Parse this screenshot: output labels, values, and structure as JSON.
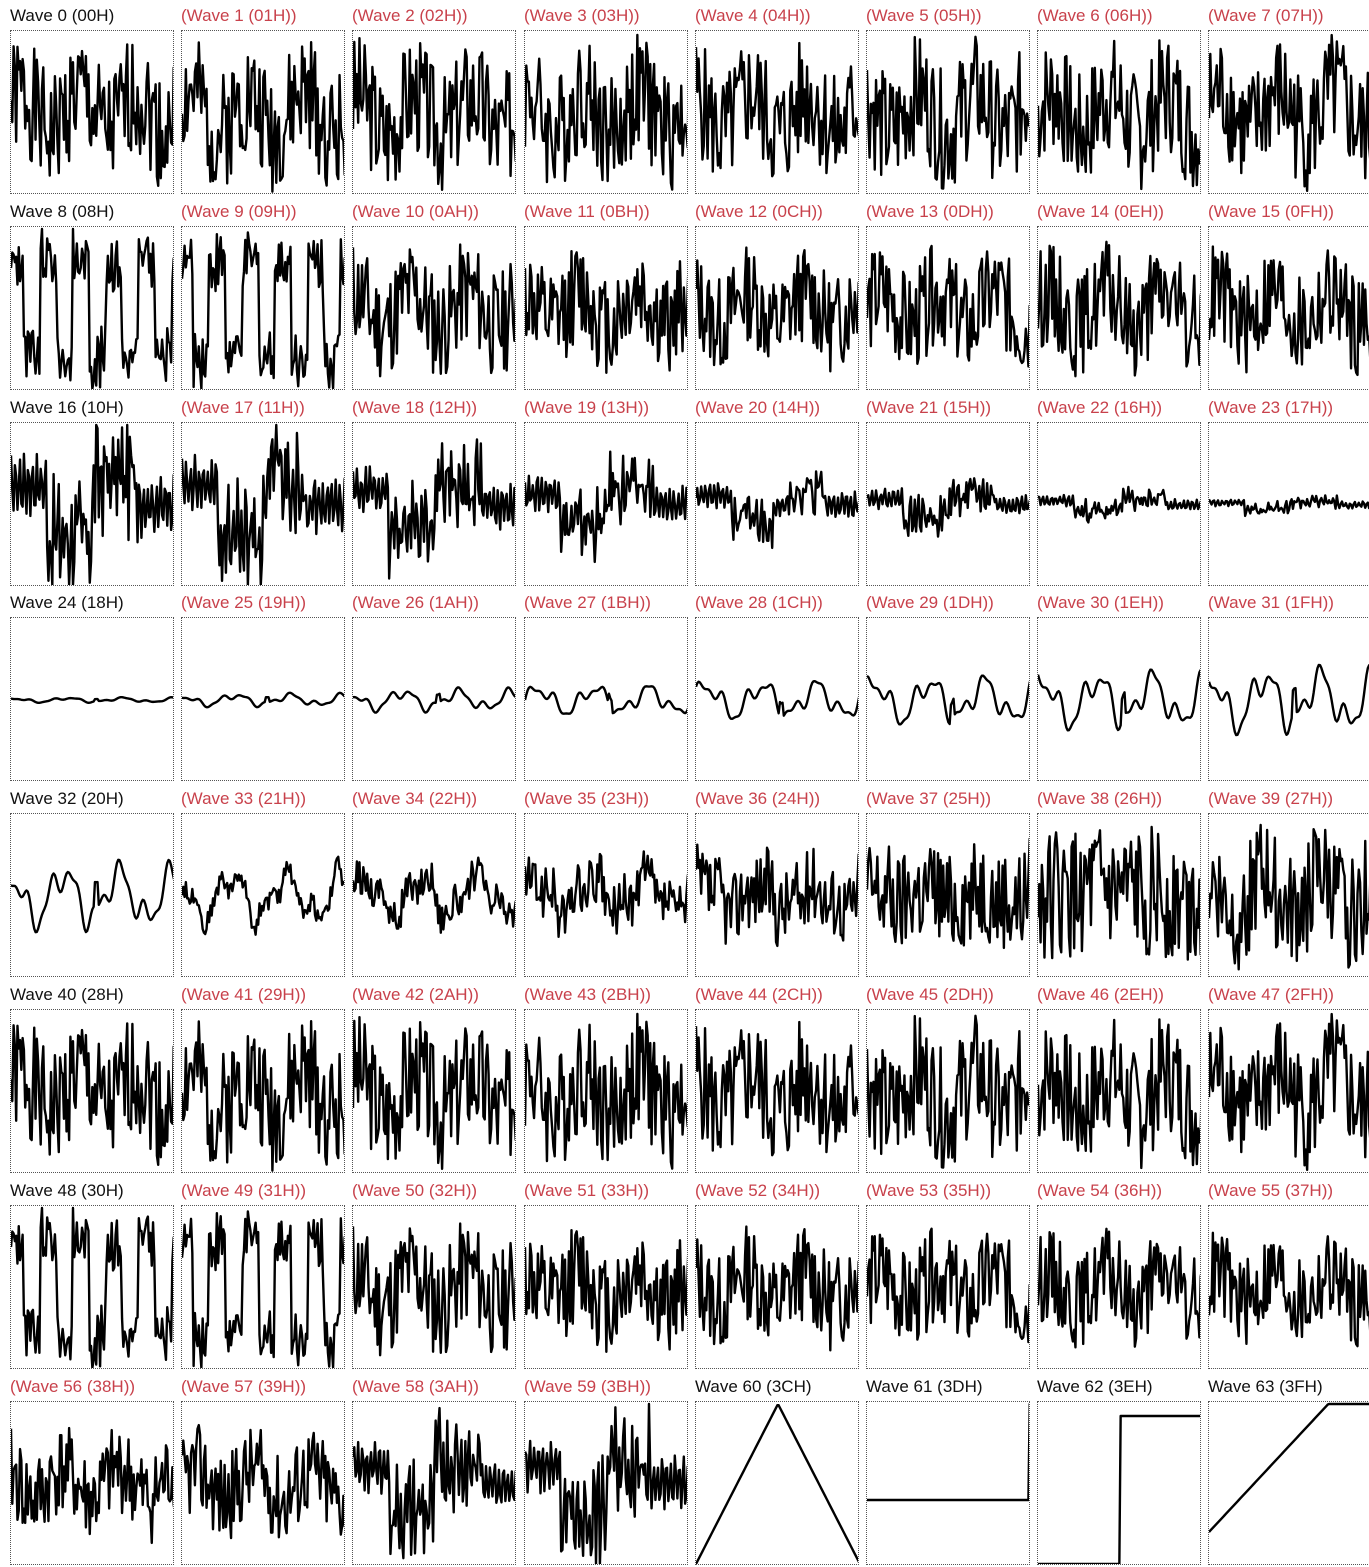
{
  "colors": {
    "normal_title": "#111111",
    "alt_title": "#c8414b",
    "trace": "#000000"
  },
  "chart_data": {
    "type": "line",
    "layout": "grid-8x8",
    "title": "",
    "ylim": [
      -1,
      1
    ],
    "panels": [
      {
        "title": "Wave 0 (00H)",
        "style": "normal",
        "shape": "noise",
        "amp": 1.0,
        "seed": 1
      },
      {
        "title": "(Wave 1 (01H))",
        "style": "alt",
        "shape": "noise",
        "amp": 1.0,
        "seed": 2
      },
      {
        "title": "(Wave 2 (02H))",
        "style": "alt",
        "shape": "noise",
        "amp": 1.0,
        "seed": 3
      },
      {
        "title": "(Wave 3 (03H))",
        "style": "alt",
        "shape": "noise",
        "amp": 1.0,
        "seed": 4
      },
      {
        "title": "(Wave 4 (04H))",
        "style": "alt",
        "shape": "noise",
        "amp": 1.0,
        "seed": 5
      },
      {
        "title": "(Wave 5 (05H))",
        "style": "alt",
        "shape": "noise",
        "amp": 1.0,
        "seed": 6
      },
      {
        "title": "(Wave 6 (06H))",
        "style": "alt",
        "shape": "noise",
        "amp": 1.0,
        "seed": 7
      },
      {
        "title": "(Wave 7 (07H))",
        "style": "alt",
        "shape": "noise",
        "amp": 1.0,
        "seed": 8
      },
      {
        "title": "Wave 8 (08H)",
        "style": "normal",
        "shape": "square-noise",
        "amp": 1.0,
        "seed": 9
      },
      {
        "title": "(Wave 9 (09H))",
        "style": "alt",
        "shape": "square-noise",
        "amp": 0.95,
        "seed": 10
      },
      {
        "title": "(Wave 10 (0AH))",
        "style": "alt",
        "shape": "noise",
        "amp": 0.9,
        "seed": 11
      },
      {
        "title": "(Wave 11 (0BH))",
        "style": "alt",
        "shape": "noise",
        "amp": 0.85,
        "seed": 12
      },
      {
        "title": "(Wave 12 (0CH))",
        "style": "alt",
        "shape": "noise",
        "amp": 0.8,
        "seed": 13
      },
      {
        "title": "(Wave 13 (0DH))",
        "style": "alt",
        "shape": "noise",
        "amp": 0.85,
        "seed": 14
      },
      {
        "title": "(Wave 14 (0EH))",
        "style": "alt",
        "shape": "noise",
        "amp": 0.85,
        "seed": 15
      },
      {
        "title": "(Wave 15 (0FH))",
        "style": "alt",
        "shape": "noise",
        "amp": 0.85,
        "seed": 16
      },
      {
        "title": "Wave 16 (10H)",
        "style": "normal",
        "shape": "burst",
        "amp": 1.0,
        "seed": 17
      },
      {
        "title": "(Wave 17 (11H))",
        "style": "alt",
        "shape": "burst",
        "amp": 0.95,
        "seed": 18
      },
      {
        "title": "(Wave 18 (12H))",
        "style": "alt",
        "shape": "burst",
        "amp": 0.75,
        "seed": 19
      },
      {
        "title": "(Wave 19 (13H))",
        "style": "alt",
        "shape": "burst",
        "amp": 0.6,
        "seed": 20
      },
      {
        "title": "(Wave 20 (14H))",
        "style": "alt",
        "shape": "burst",
        "amp": 0.45,
        "seed": 21
      },
      {
        "title": "(Wave 21 (15H))",
        "style": "alt",
        "shape": "burst",
        "amp": 0.33,
        "seed": 22
      },
      {
        "title": "(Wave 22 (16H))",
        "style": "alt",
        "shape": "burst",
        "amp": 0.2,
        "seed": 23
      },
      {
        "title": "(Wave 23 (17H))",
        "style": "alt",
        "shape": "burst",
        "amp": 0.12,
        "seed": 24
      },
      {
        "title": "Wave 24 (18H)",
        "style": "normal",
        "shape": "smooth",
        "amp": 0.04,
        "seed": 25
      },
      {
        "title": "(Wave 25 (19H))",
        "style": "alt",
        "shape": "smooth",
        "amp": 0.1,
        "seed": 26
      },
      {
        "title": "(Wave 26 (1AH))",
        "style": "alt",
        "shape": "smooth",
        "amp": 0.17,
        "seed": 27
      },
      {
        "title": "(Wave 27 (1BH))",
        "style": "alt",
        "shape": "smooth",
        "amp": 0.24,
        "seed": 28
      },
      {
        "title": "(Wave 28 (1CH))",
        "style": "alt",
        "shape": "smooth",
        "amp": 0.31,
        "seed": 29
      },
      {
        "title": "(Wave 29 (1DH))",
        "style": "alt",
        "shape": "smooth",
        "amp": 0.38,
        "seed": 30
      },
      {
        "title": "(Wave 30 (1EH))",
        "style": "alt",
        "shape": "smooth",
        "amp": 0.45,
        "seed": 31
      },
      {
        "title": "(Wave 31 (1FH))",
        "style": "alt",
        "shape": "smooth",
        "amp": 0.5,
        "seed": 32
      },
      {
        "title": "Wave 32 (20H)",
        "style": "normal",
        "shape": "smooth",
        "amp": 0.5,
        "seed": 33
      },
      {
        "title": "(Wave 33 (21H))",
        "style": "alt",
        "shape": "mixed",
        "amp": 0.55,
        "mix": 0.2,
        "seed": 34
      },
      {
        "title": "(Wave 34 (22H))",
        "style": "alt",
        "shape": "mixed",
        "amp": 0.6,
        "mix": 0.35,
        "seed": 35
      },
      {
        "title": "(Wave 35 (23H))",
        "style": "alt",
        "shape": "mixed",
        "amp": 0.65,
        "mix": 0.5,
        "seed": 36
      },
      {
        "title": "(Wave 36 (24H))",
        "style": "alt",
        "shape": "mixed",
        "amp": 0.72,
        "mix": 0.65,
        "seed": 37
      },
      {
        "title": "(Wave 37 (25H))",
        "style": "alt",
        "shape": "mixed",
        "amp": 0.8,
        "mix": 0.8,
        "seed": 38
      },
      {
        "title": "(Wave 38 (26H))",
        "style": "alt",
        "shape": "mixed",
        "amp": 0.9,
        "mix": 0.9,
        "seed": 39
      },
      {
        "title": "(Wave 39 (27H))",
        "style": "alt",
        "shape": "noise",
        "amp": 0.95,
        "seed": 40
      },
      {
        "title": "Wave 40 (28H)",
        "style": "normal",
        "shape": "noise",
        "amp": 1.0,
        "seed": 1
      },
      {
        "title": "(Wave 41 (29H))",
        "style": "alt",
        "shape": "noise",
        "amp": 1.0,
        "seed": 2
      },
      {
        "title": "(Wave 42 (2AH))",
        "style": "alt",
        "shape": "noise",
        "amp": 1.0,
        "seed": 3
      },
      {
        "title": "(Wave 43 (2BH))",
        "style": "alt",
        "shape": "noise",
        "amp": 1.0,
        "seed": 4
      },
      {
        "title": "(Wave 44 (2CH))",
        "style": "alt",
        "shape": "noise",
        "amp": 1.0,
        "seed": 5
      },
      {
        "title": "(Wave 45 (2DH))",
        "style": "alt",
        "shape": "noise",
        "amp": 1.0,
        "seed": 6
      },
      {
        "title": "(Wave 46 (2EH))",
        "style": "alt",
        "shape": "noise",
        "amp": 1.0,
        "seed": 7
      },
      {
        "title": "(Wave 47 (2FH))",
        "style": "alt",
        "shape": "noise",
        "amp": 1.0,
        "seed": 8
      },
      {
        "title": "Wave 48 (30H)",
        "style": "normal",
        "shape": "square-noise",
        "amp": 1.0,
        "seed": 9
      },
      {
        "title": "(Wave 49 (31H))",
        "style": "alt",
        "shape": "square-noise",
        "amp": 0.95,
        "seed": 10
      },
      {
        "title": "(Wave 50 (32H))",
        "style": "alt",
        "shape": "noise",
        "amp": 0.9,
        "seed": 11
      },
      {
        "title": "(Wave 51 (33H))",
        "style": "alt",
        "shape": "noise",
        "amp": 0.85,
        "seed": 12
      },
      {
        "title": "(Wave 52 (34H))",
        "style": "alt",
        "shape": "noise",
        "amp": 0.8,
        "seed": 13
      },
      {
        "title": "(Wave 53 (35H))",
        "style": "alt",
        "shape": "noise",
        "amp": 0.8,
        "seed": 14
      },
      {
        "title": "(Wave 54 (36H))",
        "style": "alt",
        "shape": "noise",
        "amp": 0.75,
        "seed": 15
      },
      {
        "title": "(Wave 55 (37H))",
        "style": "alt",
        "shape": "noise",
        "amp": 0.75,
        "seed": 16
      },
      {
        "title": "(Wave 56 (38H))",
        "style": "alt",
        "shape": "noise",
        "amp": 0.75,
        "seed": 41
      },
      {
        "title": "(Wave 57 (39H))",
        "style": "alt",
        "shape": "noise",
        "amp": 0.75,
        "seed": 42
      },
      {
        "title": "(Wave 58 (3AH))",
        "style": "alt",
        "shape": "burst",
        "amp": 0.85,
        "seed": 43
      },
      {
        "title": "(Wave 59 (3BH))",
        "style": "alt",
        "shape": "burst",
        "amp": 0.9,
        "seed": 44
      },
      {
        "title": "Wave 60 (3CH)",
        "style": "normal",
        "shape": "triangle",
        "amp": 1.0
      },
      {
        "title": "Wave 61 (3DH)",
        "style": "normal",
        "shape": "flat-step",
        "amp": 1.0
      },
      {
        "title": "Wave 62 (3EH)",
        "style": "normal",
        "shape": "square",
        "amp": 1.0
      },
      {
        "title": "Wave 63 (3FH)",
        "style": "normal",
        "shape": "sawtooth",
        "amp": 1.0
      }
    ]
  }
}
